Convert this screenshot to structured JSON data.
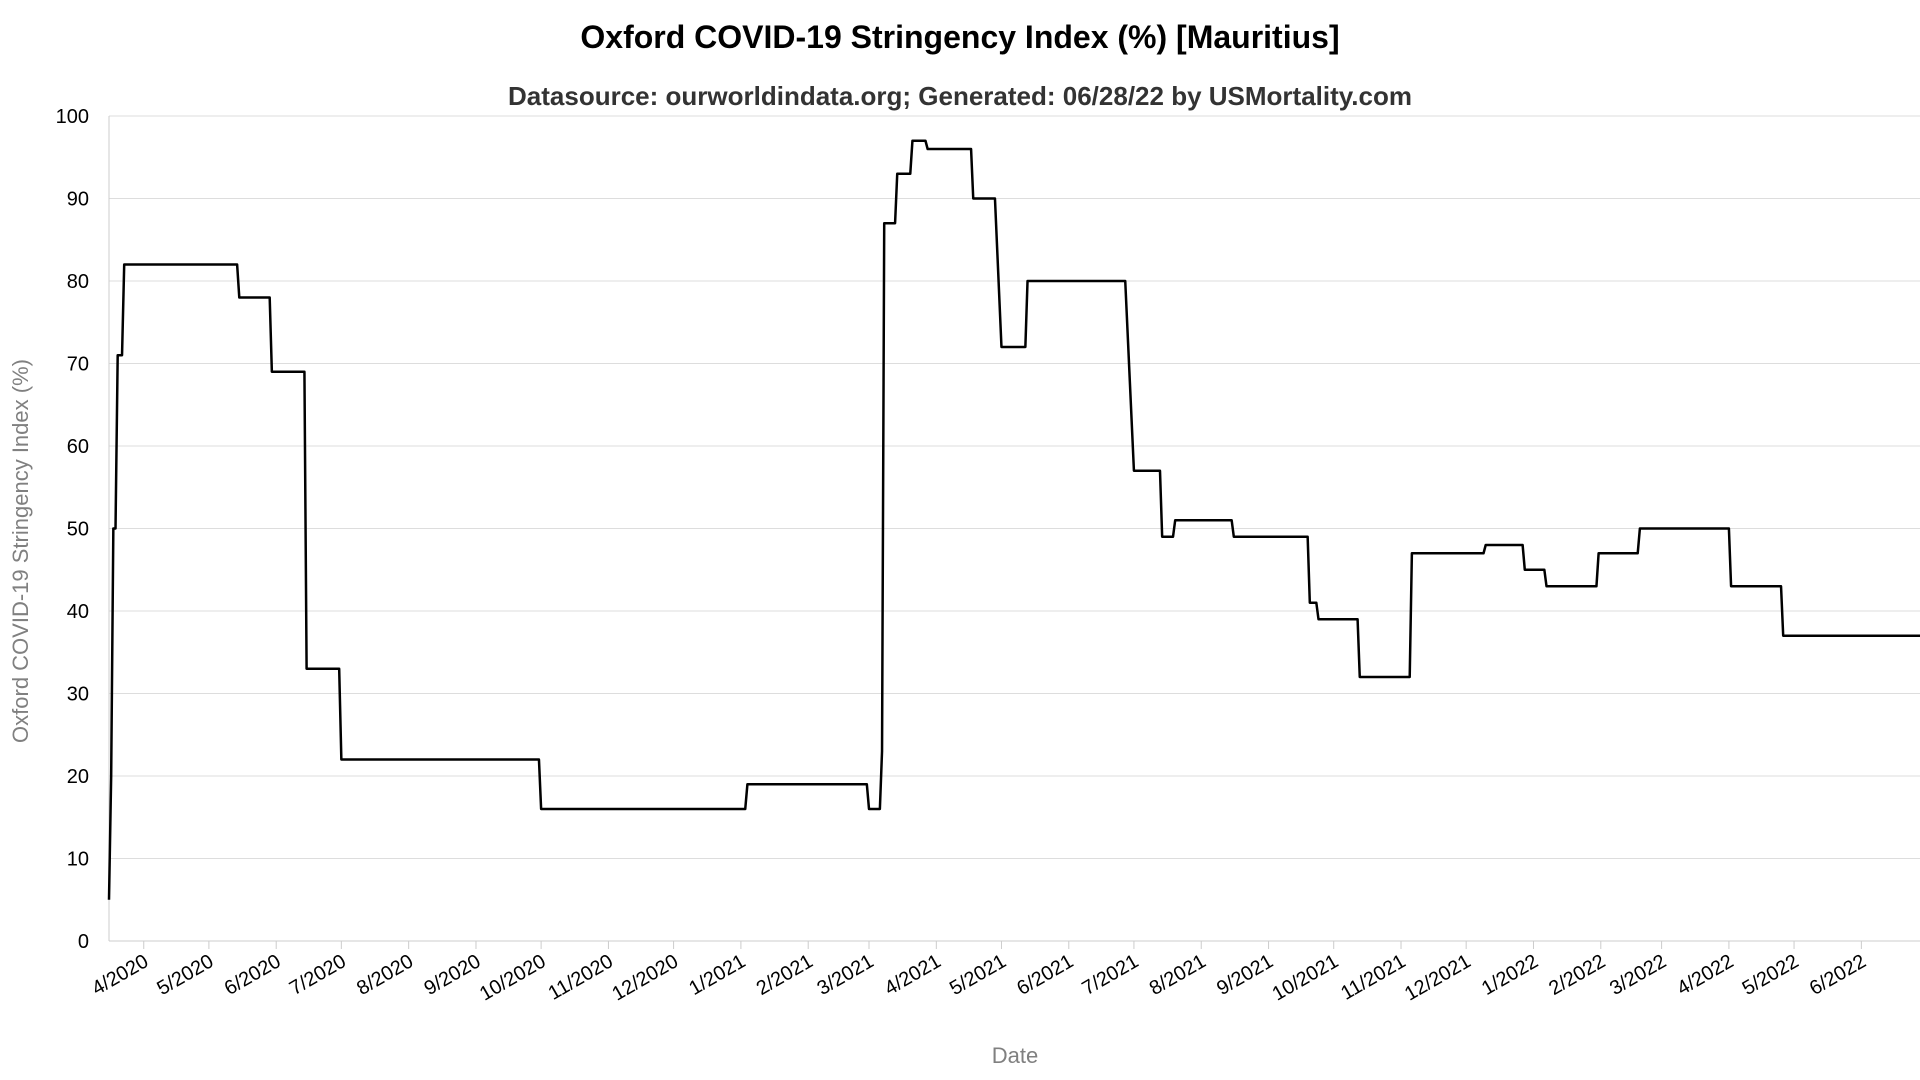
{
  "chart_data": {
    "type": "line",
    "title": "Oxford COVID-19 Stringency Index (%) [Mauritius]",
    "subtitle": "Datasource: ourworldindata.org; Generated: 06/28/22 by USMortality.com",
    "xlabel": "Date",
    "ylabel": "Oxford COVID-19 Stringency Index (%)",
    "ylim": [
      0,
      100
    ],
    "yticks": [
      0,
      10,
      20,
      30,
      40,
      50,
      60,
      70,
      80,
      90,
      100
    ],
    "xlim": [
      "2020-03-16",
      "2022-06-28"
    ],
    "xticks": [
      {
        "date": "2020-04-01",
        "label": "4/2020"
      },
      {
        "date": "2020-05-01",
        "label": "5/2020"
      },
      {
        "date": "2020-06-01",
        "label": "6/2020"
      },
      {
        "date": "2020-07-01",
        "label": "7/2020"
      },
      {
        "date": "2020-08-01",
        "label": "8/2020"
      },
      {
        "date": "2020-09-01",
        "label": "9/2020"
      },
      {
        "date": "2020-10-01",
        "label": "10/2020"
      },
      {
        "date": "2020-11-01",
        "label": "11/2020"
      },
      {
        "date": "2020-12-01",
        "label": "12/2020"
      },
      {
        "date": "2021-01-01",
        "label": "1/2021"
      },
      {
        "date": "2021-02-01",
        "label": "2/2021"
      },
      {
        "date": "2021-03-01",
        "label": "3/2021"
      },
      {
        "date": "2021-04-01",
        "label": "4/2021"
      },
      {
        "date": "2021-05-01",
        "label": "5/2021"
      },
      {
        "date": "2021-06-01",
        "label": "6/2021"
      },
      {
        "date": "2021-07-01",
        "label": "7/2021"
      },
      {
        "date": "2021-08-01",
        "label": "8/2021"
      },
      {
        "date": "2021-09-01",
        "label": "9/2021"
      },
      {
        "date": "2021-10-01",
        "label": "10/2021"
      },
      {
        "date": "2021-11-01",
        "label": "11/2021"
      },
      {
        "date": "2021-12-01",
        "label": "12/2021"
      },
      {
        "date": "2022-01-01",
        "label": "1/2022"
      },
      {
        "date": "2022-02-01",
        "label": "2/2022"
      },
      {
        "date": "2022-03-01",
        "label": "3/2022"
      },
      {
        "date": "2022-04-01",
        "label": "4/2022"
      },
      {
        "date": "2022-05-01",
        "label": "5/2022"
      },
      {
        "date": "2022-06-01",
        "label": "6/2022"
      }
    ],
    "grid": true,
    "series": [
      {
        "color": "#000000",
        "points": [
          [
            "2020-03-16",
            5
          ],
          [
            "2020-03-17",
            20
          ],
          [
            "2020-03-18",
            50
          ],
          [
            "2020-03-19",
            50
          ],
          [
            "2020-03-20",
            71
          ],
          [
            "2020-03-22",
            71
          ],
          [
            "2020-03-23",
            82
          ],
          [
            "2020-05-14",
            82
          ],
          [
            "2020-05-15",
            78
          ],
          [
            "2020-05-29",
            78
          ],
          [
            "2020-05-30",
            69
          ],
          [
            "2020-06-14",
            69
          ],
          [
            "2020-06-15",
            33
          ],
          [
            "2020-06-30",
            33
          ],
          [
            "2020-07-01",
            22
          ],
          [
            "2020-09-30",
            22
          ],
          [
            "2020-10-01",
            16
          ],
          [
            "2021-01-03",
            16
          ],
          [
            "2021-01-04",
            19
          ],
          [
            "2021-02-28",
            19
          ],
          [
            "2021-03-01",
            16
          ],
          [
            "2021-03-06",
            16
          ],
          [
            "2021-03-07",
            23
          ],
          [
            "2021-03-08",
            87
          ],
          [
            "2021-03-13",
            87
          ],
          [
            "2021-03-14",
            93
          ],
          [
            "2021-03-20",
            93
          ],
          [
            "2021-03-21",
            97
          ],
          [
            "2021-03-27",
            97
          ],
          [
            "2021-03-28",
            96
          ],
          [
            "2021-04-17",
            96
          ],
          [
            "2021-04-18",
            90
          ],
          [
            "2021-04-28",
            90
          ],
          [
            "2021-05-01",
            72
          ],
          [
            "2021-05-12",
            72
          ],
          [
            "2021-05-13",
            80
          ],
          [
            "2021-06-27",
            80
          ],
          [
            "2021-07-01",
            57
          ],
          [
            "2021-07-13",
            57
          ],
          [
            "2021-07-14",
            49
          ],
          [
            "2021-07-19",
            49
          ],
          [
            "2021-07-20",
            51
          ],
          [
            "2021-08-15",
            51
          ],
          [
            "2021-08-16",
            49
          ],
          [
            "2021-09-19",
            49
          ],
          [
            "2021-09-20",
            41
          ],
          [
            "2021-09-23",
            41
          ],
          [
            "2021-09-24",
            39
          ],
          [
            "2021-10-12",
            39
          ],
          [
            "2021-10-13",
            32
          ],
          [
            "2021-11-05",
            32
          ],
          [
            "2021-11-06",
            47
          ],
          [
            "2021-12-09",
            47
          ],
          [
            "2021-12-10",
            48
          ],
          [
            "2021-12-27",
            48
          ],
          [
            "2021-12-28",
            45
          ],
          [
            "2022-01-06",
            45
          ],
          [
            "2022-01-07",
            43
          ],
          [
            "2022-01-30",
            43
          ],
          [
            "2022-01-31",
            47
          ],
          [
            "2022-02-18",
            47
          ],
          [
            "2022-02-19",
            50
          ],
          [
            "2022-04-01",
            50
          ],
          [
            "2022-04-02",
            43
          ],
          [
            "2022-04-25",
            43
          ],
          [
            "2022-04-26",
            37
          ],
          [
            "2022-06-28",
            37
          ]
        ]
      }
    ]
  }
}
